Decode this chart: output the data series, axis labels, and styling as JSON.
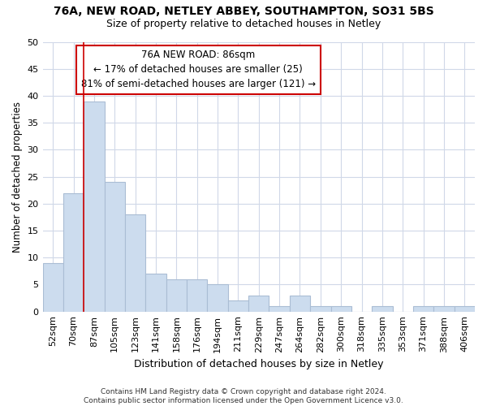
{
  "title1": "76A, NEW ROAD, NETLEY ABBEY, SOUTHAMPTON, SO31 5BS",
  "title2": "Size of property relative to detached houses in Netley",
  "xlabel": "Distribution of detached houses by size in Netley",
  "ylabel": "Number of detached properties",
  "categories": [
    "52sqm",
    "70sqm",
    "87sqm",
    "105sqm",
    "123sqm",
    "141sqm",
    "158sqm",
    "176sqm",
    "194sqm",
    "211sqm",
    "229sqm",
    "247sqm",
    "264sqm",
    "282sqm",
    "300sqm",
    "318sqm",
    "335sqm",
    "353sqm",
    "371sqm",
    "388sqm",
    "406sqm"
  ],
  "values": [
    9,
    22,
    39,
    24,
    18,
    7,
    6,
    6,
    5,
    2,
    3,
    1,
    3,
    1,
    1,
    0,
    1,
    0,
    1,
    1,
    1
  ],
  "bar_fill_color": "#ccdcee",
  "bar_edge_color": "#aabdd4",
  "vline_x_index": 2,
  "vline_color": "#cc0000",
  "annotation_text": "76A NEW ROAD: 86sqm\n← 17% of detached houses are smaller (25)\n81% of semi-detached houses are larger (121) →",
  "annotation_box_color": "#ffffff",
  "annotation_box_edge": "#cc0000",
  "ylim": [
    0,
    50
  ],
  "yticks": [
    0,
    5,
    10,
    15,
    20,
    25,
    30,
    35,
    40,
    45,
    50
  ],
  "footer": "Contains HM Land Registry data © Crown copyright and database right 2024.\nContains public sector information licensed under the Open Government Licence v3.0.",
  "bg_color": "#ffffff",
  "fig_bg_color": "#ffffff",
  "grid_color": "#d0d8e8",
  "title1_fontsize": 10,
  "title2_fontsize": 9,
  "xlabel_fontsize": 9,
  "ylabel_fontsize": 8.5,
  "tick_fontsize": 8,
  "footer_fontsize": 6.5
}
